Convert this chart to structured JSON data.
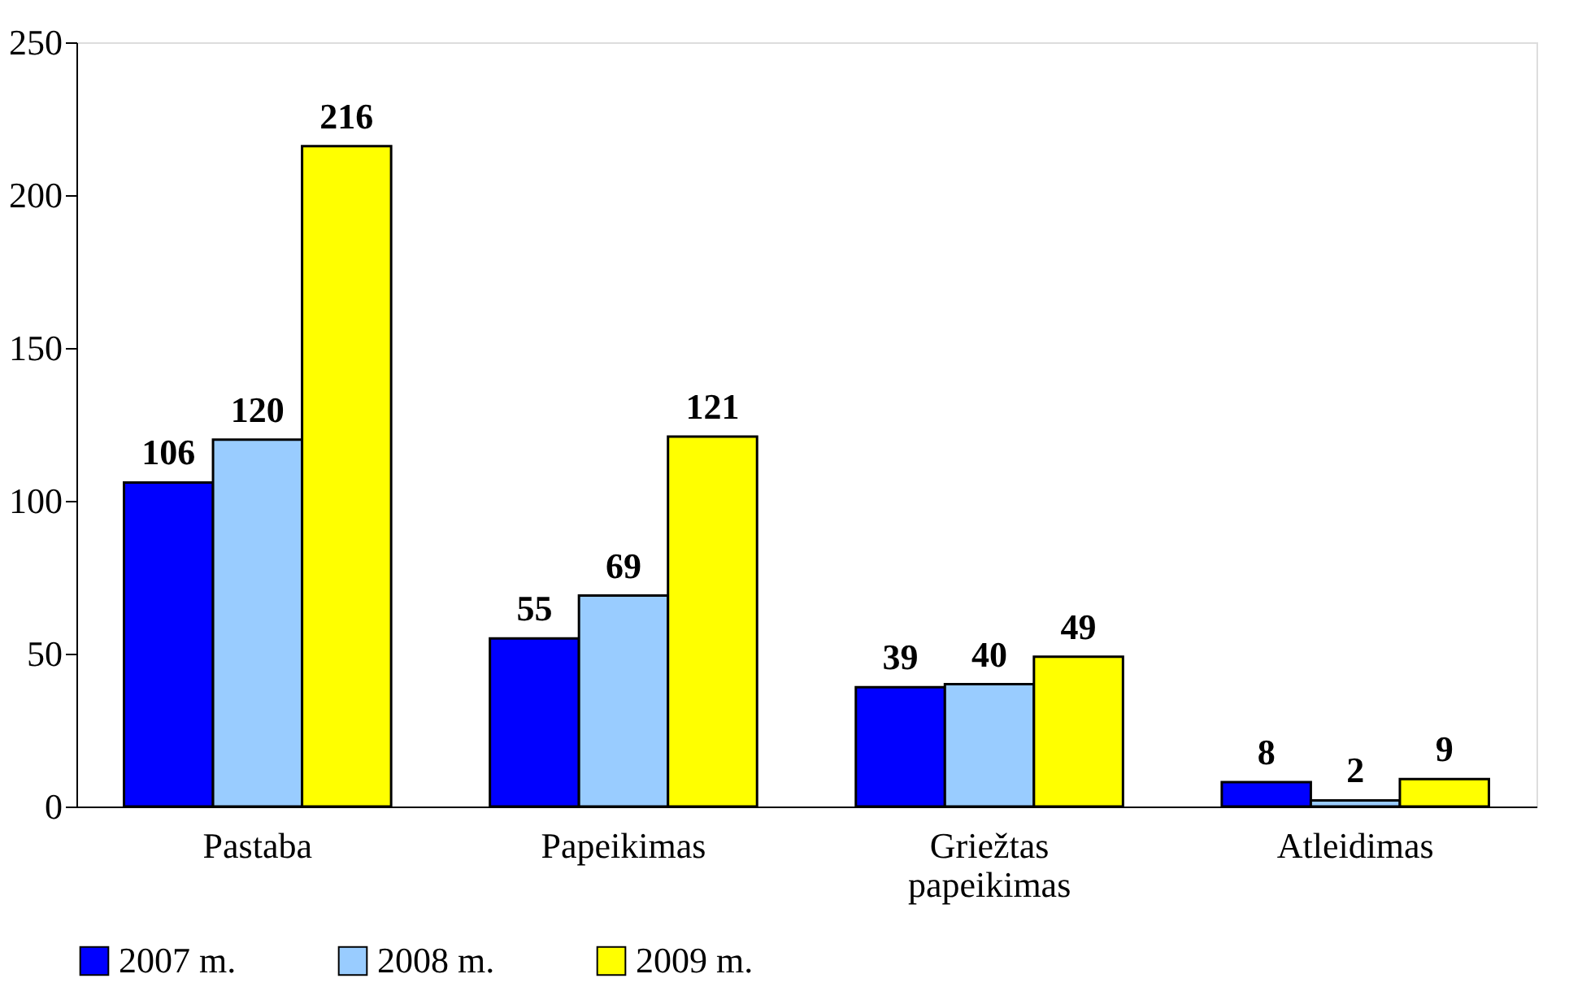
{
  "chart_data": {
    "type": "bar",
    "categories": [
      "Pastaba",
      "Papeikimas",
      "Griežtas papeikimas",
      "Atleidimas"
    ],
    "series": [
      {
        "name": "2007 m.",
        "color": "#0000ff",
        "values": [
          106,
          55,
          39,
          8
        ]
      },
      {
        "name": "2008 m.",
        "color": "#99ccff",
        "values": [
          120,
          69,
          40,
          2
        ]
      },
      {
        "name": "2009 m.",
        "color": "#ffff00",
        "values": [
          216,
          121,
          49,
          9
        ]
      }
    ],
    "ylim": [
      0,
      250
    ],
    "yticks": [
      0,
      50,
      100,
      150,
      200,
      250
    ],
    "grid": false,
    "legend": "bottom",
    "data_labels": true
  }
}
